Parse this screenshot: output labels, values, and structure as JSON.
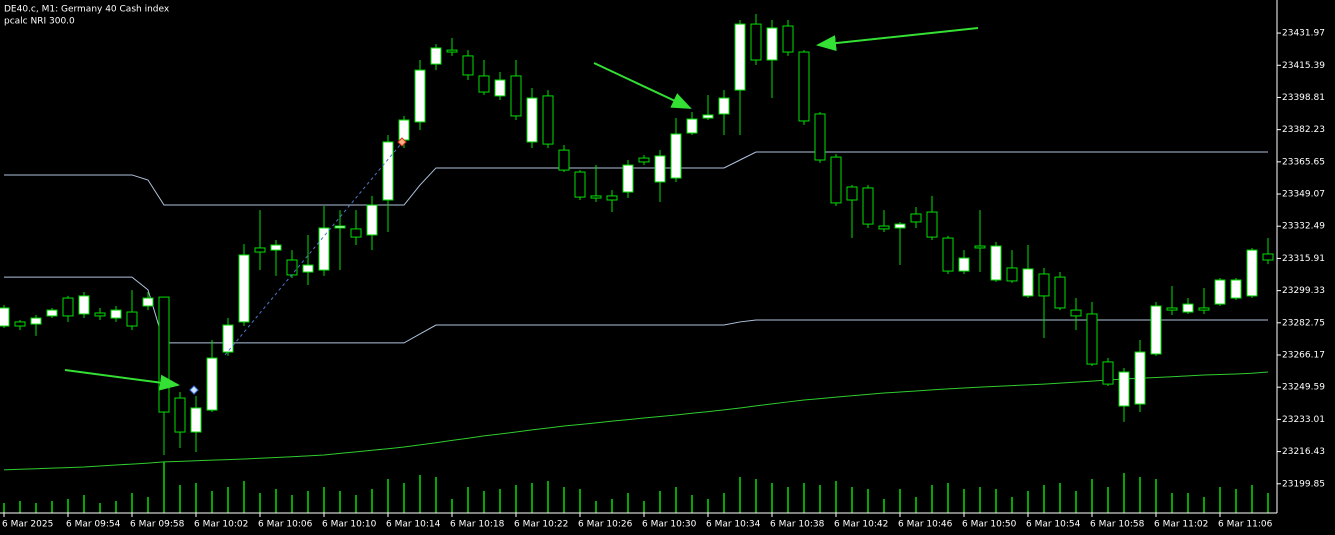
{
  "chart_data": {
    "type": "candlestick",
    "title": "DE40.c, M1:  Germany 40 Cash index",
    "subtitle": "pcalc NRI 300.0",
    "categories": [
      "6 Mar 2025",
      null,
      null,
      null,
      "6 Mar 09:54",
      null,
      null,
      null,
      "6 Mar 09:58",
      null,
      null,
      null,
      "6 Mar 10:02",
      null,
      null,
      null,
      "6 Mar 10:06",
      null,
      null,
      null,
      "6 Mar 10:10",
      null,
      null,
      null,
      "6 Mar 10:14",
      null,
      null,
      null,
      "6 Mar 10:18",
      null,
      null,
      null,
      "6 Mar 10:22",
      null,
      null,
      null,
      "6 Mar 10:26",
      null,
      null,
      null,
      "6 Mar 10:30",
      null,
      null,
      null,
      "6 Mar 10:34",
      null,
      null,
      null,
      "6 Mar 10:38",
      null,
      null,
      null,
      "6 Mar 10:42",
      null,
      null,
      null,
      "6 Mar 10:46",
      null,
      null,
      null,
      "6 Mar 10:50",
      null,
      null,
      null,
      "6 Mar 10:54",
      null,
      null,
      null,
      "6 Mar 10:58",
      null,
      null,
      null,
      "6 Mar 11:02",
      null,
      null,
      null,
      "6 Mar 11:06",
      null,
      null,
      null
    ],
    "open": [
      23281.1,
      23283.2,
      23282.1,
      23286.3,
      23295.5,
      23287.3,
      23287.8,
      23285.2,
      23288.3,
      23291.4,
      23296.0,
      23244.0,
      23226.5,
      23237.8,
      23267.7,
      23283.2,
      23321.3,
      23320.2,
      23315.1,
      23308.9,
      23309.9,
      23331.6,
      23331.1,
      23328.0,
      23346.0,
      23376.9,
      23386.2,
      23416.0,
      23423.2,
      23420.2,
      23409.9,
      23399.6,
      23409.9,
      23375.9,
      23399.6,
      23371.7,
      23360.4,
      23348.1,
      23348.1,
      23350.1,
      23367.6,
      23355.3,
      23357.3,
      23380.5,
      23388.2,
      23390.3,
      23402.6,
      23436.6,
      23418.1,
      23435.6,
      23422.2,
      23390.3,
      23368.1,
      23352.7,
      23352.2,
      23332.6,
      23331.6,
      23338.8,
      23339.8,
      23326.4,
      23309.4,
      23322.3,
      23304.8,
      23311.0,
      23296.6,
      23307.9,
      23306.3,
      23289.3,
      23287.3,
      23262.6,
      23239.9,
      23240.9,
      23266.7,
      23290.4,
      23288.3,
      23290.4,
      23292.4,
      23295.5,
      23296.6,
      23318.2
    ],
    "high": [
      23291.9,
      23284.2,
      23286.8,
      23290.4,
      23296.6,
      23298.6,
      23290.4,
      23291.4,
      23299.6,
      23298.6,
      23296.0,
      23247.1,
      23245.1,
      23273.9,
      23285.2,
      23323.3,
      23340.8,
      23325.4,
      23320.2,
      23328.0,
      23342.9,
      23340.8,
      23340.8,
      23348.1,
      23379.5,
      23389.3,
      23418.1,
      23426.3,
      23429.4,
      23423.2,
      23418.1,
      23411.9,
      23418.1,
      23403.7,
      23402.6,
      23374.3,
      23361.4,
      23364.0,
      23351.1,
      23366.6,
      23369.2,
      23371.7,
      23388.2,
      23391.3,
      23400.1,
      23402.6,
      23438.7,
      23441.8,
      23438.7,
      23438.7,
      23423.2,
      23391.3,
      23369.7,
      23353.7,
      23353.7,
      23340.8,
      23334.7,
      23342.4,
      23348.1,
      23327.5,
      23320.2,
      23340.8,
      23324.4,
      23320.2,
      23322.8,
      23311.0,
      23308.9,
      23295.5,
      23293.5,
      23264.6,
      23259.5,
      23273.9,
      23293.5,
      23301.7,
      23295.5,
      23300.7,
      23305.8,
      23305.8,
      23321.3,
      23326.4
    ],
    "low": [
      23280.1,
      23279.0,
      23276.0,
      23285.2,
      23283.2,
      23285.2,
      23284.2,
      23283.2,
      23279.0,
      23289.3,
      23214.7,
      23218.3,
      23216.2,
      23236.8,
      23265.7,
      23281.1,
      23309.9,
      23306.9,
      23305.8,
      23302.2,
      23306.9,
      23309.9,
      23322.8,
      23320.2,
      23329.5,
      23372.8,
      23382.0,
      23412.9,
      23420.2,
      23407.8,
      23400.1,
      23397.5,
      23387.2,
      23372.8,
      23372.8,
      23360.4,
      23346.0,
      23345.0,
      23339.8,
      23347.0,
      23364.0,
      23345.0,
      23355.3,
      23379.5,
      23387.2,
      23379.5,
      23379.5,
      23415.5,
      23398.5,
      23420.2,
      23384.6,
      23365.1,
      23342.9,
      23326.4,
      23331.6,
      23329.5,
      23312.5,
      23331.6,
      23325.4,
      23307.9,
      23307.9,
      23308.9,
      23303.8,
      23303.3,
      23295.5,
      23274.9,
      23289.3,
      23279.0,
      23260.5,
      23250.2,
      23231.7,
      23236.8,
      23265.7,
      23286.8,
      23287.3,
      23287.3,
      23291.4,
      23294.5,
      23295.5,
      23313.0
    ],
    "close": [
      23290.4,
      23281.1,
      23285.2,
      23289.3,
      23286.3,
      23296.6,
      23286.3,
      23289.3,
      23281.1,
      23295.5,
      23236.8,
      23226.5,
      23238.9,
      23264.6,
      23281.6,
      23317.7,
      23319.2,
      23322.8,
      23307.4,
      23312.5,
      23331.6,
      23332.6,
      23326.9,
      23343.4,
      23375.9,
      23387.2,
      23412.9,
      23424.3,
      23422.2,
      23410.4,
      23401.6,
      23407.8,
      23389.3,
      23398.5,
      23374.8,
      23361.4,
      23347.5,
      23347.0,
      23346.0,
      23364.0,
      23365.6,
      23368.7,
      23380.0,
      23387.7,
      23389.8,
      23398.5,
      23436.6,
      23418.1,
      23434.6,
      23422.2,
      23386.7,
      23366.6,
      23344.5,
      23346.0,
      23333.6,
      23331.1,
      23333.6,
      23334.7,
      23326.9,
      23309.4,
      23316.1,
      23321.3,
      23322.3,
      23304.3,
      23310.5,
      23296.6,
      23290.4,
      23286.3,
      23261.5,
      23251.2,
      23257.4,
      23267.7,
      23291.4,
      23289.3,
      23292.4,
      23289.3,
      23304.8,
      23304.8,
      23320.2,
      23315.1
    ],
    "volume": [
      10,
      12,
      10,
      12,
      14,
      18,
      10,
      12,
      20,
      16,
      51,
      28,
      30,
      22,
      26,
      32,
      20,
      24,
      18,
      22,
      26,
      22,
      18,
      24,
      34,
      30,
      38,
      36,
      14,
      26,
      22,
      24,
      28,
      30,
      32,
      26,
      24,
      12,
      14,
      20,
      12,
      22,
      26,
      18,
      14,
      20,
      36,
      34,
      30,
      26,
      30,
      28,
      32,
      26,
      24,
      14,
      24,
      16,
      28,
      30,
      24,
      26,
      24,
      16,
      22,
      28,
      30,
      22,
      34,
      26,
      40,
      36,
      34,
      20,
      20,
      16,
      26,
      24,
      28,
      20
    ],
    "bull_color": "#ffffff",
    "bear_color": "#000000",
    "candle_color": "#00e000",
    "volume_color": "#00e000",
    "overlays": [
      {
        "color": "#b0c4de",
        "values": [
          23358.9,
          23358.9,
          23358.9,
          23358.9,
          23358.9,
          23358.9,
          23358.9,
          23358.9,
          23358.9,
          23356.3,
          23343.4,
          23343.4,
          23343.4,
          23343.4,
          23343.4,
          23343.4,
          23343.4,
          23343.4,
          23343.4,
          23343.4,
          23343.4,
          23343.4,
          23343.4,
          23343.4,
          23343.4,
          23343.4,
          23353.7,
          23362.5,
          23362.5,
          23362.5,
          23362.5,
          23362.5,
          23362.5,
          23362.5,
          23362.5,
          23362.5,
          23362.5,
          23362.5,
          23362.5,
          23362.5,
          23362.5,
          23362.5,
          23362.5,
          23362.5,
          23362.5,
          23362.5,
          23366.6,
          23370.7,
          23370.7,
          23370.7,
          23370.7,
          23370.7,
          23370.7,
          23370.7,
          23370.7,
          23370.7,
          23370.7,
          23370.7,
          23370.7,
          23370.7,
          23370.7,
          23370.7,
          23370.7,
          23370.7,
          23370.7,
          23370.7,
          23370.7,
          23370.7,
          23370.7,
          23370.7,
          23370.7,
          23370.7,
          23370.7,
          23370.7,
          23370.7,
          23370.7,
          23370.7,
          23370.7,
          23370.7,
          23370.7
        ]
      },
      {
        "color": "#b0c4de",
        "values": [
          23306.3,
          23306.3,
          23306.3,
          23306.3,
          23306.3,
          23306.3,
          23306.3,
          23306.3,
          23306.3,
          23299.7,
          23272.4,
          23272.4,
          23272.4,
          23272.4,
          23272.4,
          23272.4,
          23272.4,
          23272.4,
          23272.4,
          23272.4,
          23272.4,
          23272.4,
          23272.4,
          23272.4,
          23272.4,
          23272.4,
          23277.0,
          23281.6,
          23281.6,
          23281.6,
          23281.6,
          23281.6,
          23281.6,
          23281.6,
          23281.6,
          23281.6,
          23281.6,
          23281.6,
          23281.6,
          23281.6,
          23281.6,
          23281.6,
          23281.6,
          23281.6,
          23281.6,
          23281.6,
          23283.2,
          23284.2,
          23284.2,
          23284.2,
          23284.2,
          23284.2,
          23284.2,
          23284.2,
          23284.2,
          23284.2,
          23284.2,
          23284.2,
          23284.2,
          23284.2,
          23284.2,
          23284.2,
          23284.2,
          23284.2,
          23284.2,
          23284.2,
          23284.2,
          23284.2,
          23284.2,
          23284.2,
          23284.2,
          23284.2,
          23284.2,
          23284.2,
          23284.2,
          23284.2,
          23284.2,
          23284.2,
          23284.2,
          23284.2
        ]
      },
      {
        "color": "#2ecc2e",
        "values": [
          23207.0,
          23207.3,
          23207.6,
          23207.9,
          23208.2,
          23208.5,
          23209.0,
          23209.5,
          23210.0,
          23210.5,
          23211.1,
          23211.4,
          23211.7,
          23212.0,
          23212.3,
          23212.6,
          23213.0,
          23213.4,
          23213.8,
          23214.2,
          23214.7,
          23215.5,
          23216.3,
          23217.1,
          23217.9,
          23218.8,
          23219.9,
          23221.0,
          23222.2,
          23223.3,
          23224.5,
          23225.5,
          23226.5,
          23227.6,
          23228.6,
          23229.6,
          23230.4,
          23231.2,
          23232.1,
          23232.9,
          23233.7,
          23234.5,
          23235.3,
          23236.2,
          23237.0,
          23237.9,
          23238.9,
          23240.0,
          23241.0,
          23242.0,
          23243.0,
          23243.7,
          23244.5,
          23245.2,
          23245.9,
          23246.6,
          23247.1,
          23247.6,
          23248.2,
          23248.7,
          23249.2,
          23249.6,
          23250.0,
          23250.4,
          23250.8,
          23251.2,
          23251.7,
          23252.2,
          23252.7,
          23253.3,
          23253.8,
          23254.2,
          23254.6,
          23255.0,
          23255.4,
          23255.9,
          23256.1,
          23256.4,
          23256.8,
          23257.4
        ]
      }
    ],
    "ylim": [
      23184.8,
      23449.0
    ],
    "yticks": [
      23431.97,
      23415.39,
      23398.81,
      23382.23,
      23365.65,
      23349.07,
      23332.49,
      23315.91,
      23299.33,
      23282.75,
      23266.17,
      23249.59,
      23233.01,
      23216.43,
      23199.85
    ],
    "grid": false
  }
}
